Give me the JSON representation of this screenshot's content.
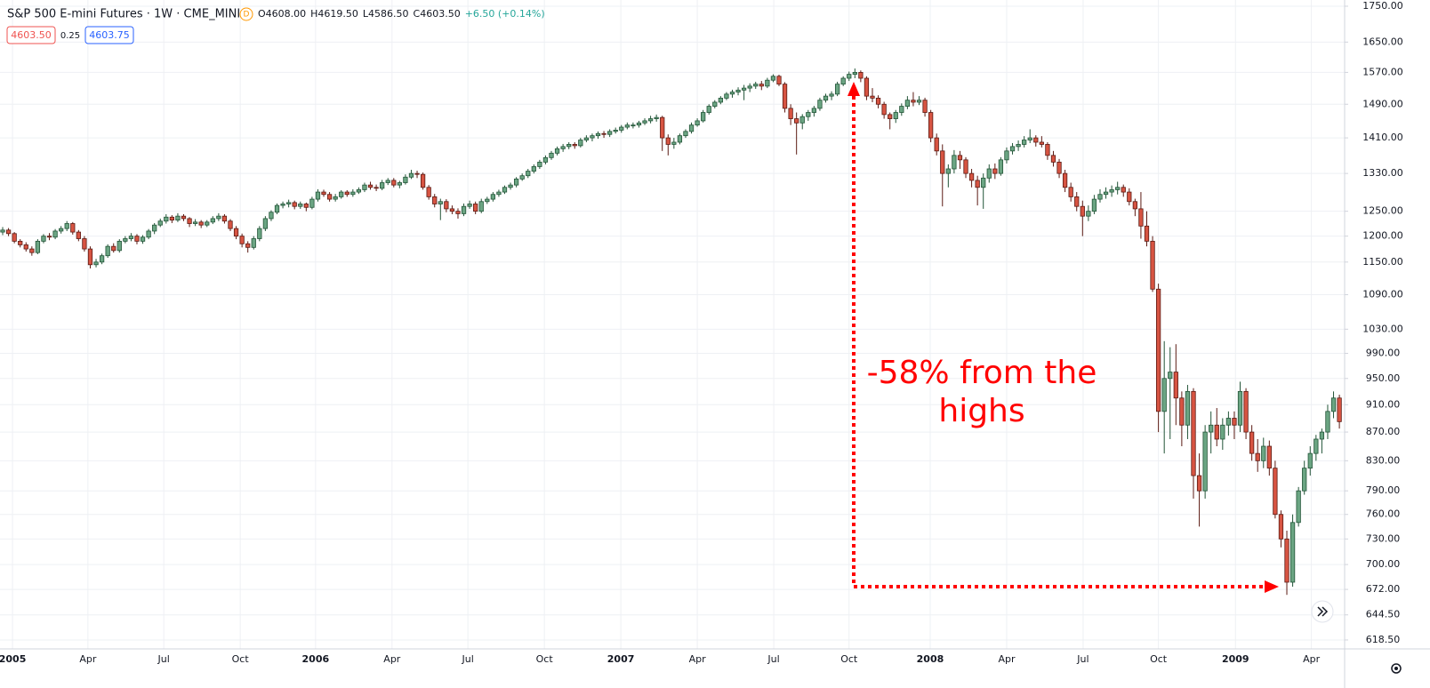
{
  "chart_data": {
    "type": "candlestick",
    "title": "S&P 500 E-mini Futures · 1W · CME_MINI",
    "source_badge": "D",
    "legend_values": [
      "O4608.00",
      "H4619.50",
      "L4586.50",
      "C4603.50",
      "+6.50 (+0.14%)"
    ],
    "price_boxes": [
      "4603.50",
      "0.25",
      "4603.75"
    ],
    "annotation": [
      "-58% from the",
      "highs"
    ],
    "log_scale": true,
    "grid": true,
    "up_color": "#6ba583",
    "down_color": "#d75442",
    "ylim": [
      609.5,
      1768
    ],
    "yticks": [
      {
        "value": 618.5,
        "label": "618.50"
      },
      {
        "value": 644.5,
        "label": "644.50"
      },
      {
        "value": 672,
        "label": "672.00"
      },
      {
        "value": 700,
        "label": "700.00"
      },
      {
        "value": 730,
        "label": "730.00"
      },
      {
        "value": 760,
        "label": "760.00"
      },
      {
        "value": 790,
        "label": "790.00"
      },
      {
        "value": 830,
        "label": "830.00"
      },
      {
        "value": 870,
        "label": "870.00"
      },
      {
        "value": 910,
        "label": "910.00"
      },
      {
        "value": 950,
        "label": "950.00"
      },
      {
        "value": 990,
        "label": "990.00"
      },
      {
        "value": 1030,
        "label": "1030.00"
      },
      {
        "value": 1090,
        "label": "1090.00"
      },
      {
        "value": 1150,
        "label": "1150.00"
      },
      {
        "value": 1200,
        "label": "1200.00"
      },
      {
        "value": 1250,
        "label": "1250.00"
      },
      {
        "value": 1330,
        "label": "1330.00"
      },
      {
        "value": 1410,
        "label": "1410.00"
      },
      {
        "value": 1490,
        "label": "1490.00"
      },
      {
        "value": 1570,
        "label": "1570.00"
      },
      {
        "value": 1650,
        "label": "1650.00"
      },
      {
        "value": 1750,
        "label": "1750.00"
      }
    ],
    "xlim": [
      -0.46,
      229.9
    ],
    "xticks": [
      {
        "value": 1.68,
        "label": "2005"
      },
      {
        "value": 14.6,
        "label": "Apr"
      },
      {
        "value": 27.6,
        "label": "Jul"
      },
      {
        "value": 40.7,
        "label": "Oct"
      },
      {
        "value": 53.6,
        "label": "2006"
      },
      {
        "value": 66.7,
        "label": "Apr"
      },
      {
        "value": 79.7,
        "label": "Jul"
      },
      {
        "value": 92.8,
        "label": "Oct"
      },
      {
        "value": 105.9,
        "label": "2007"
      },
      {
        "value": 119.0,
        "label": "Apr"
      },
      {
        "value": 132.1,
        "label": "Jul"
      },
      {
        "value": 145.0,
        "label": "Oct"
      },
      {
        "value": 158.9,
        "label": "2008"
      },
      {
        "value": 172.0,
        "label": "Apr"
      },
      {
        "value": 185.1,
        "label": "Jul"
      },
      {
        "value": 198.0,
        "label": "Oct"
      },
      {
        "value": 211.2,
        "label": "2009"
      },
      {
        "value": 224.2,
        "label": "Apr"
      }
    ],
    "ohlc": [
      [
        1208,
        1218,
        1202,
        1212
      ],
      [
        1212,
        1216,
        1200,
        1205
      ],
      [
        1205,
        1208,
        1186,
        1190
      ],
      [
        1190,
        1194,
        1178,
        1183
      ],
      [
        1183,
        1188,
        1170,
        1175
      ],
      [
        1175,
        1180,
        1162,
        1168
      ],
      [
        1168,
        1194,
        1165,
        1190
      ],
      [
        1190,
        1204,
        1186,
        1200
      ],
      [
        1200,
        1206,
        1192,
        1198
      ],
      [
        1198,
        1214,
        1194,
        1210
      ],
      [
        1210,
        1220,
        1205,
        1215
      ],
      [
        1215,
        1230,
        1210,
        1225
      ],
      [
        1225,
        1228,
        1203,
        1208
      ],
      [
        1208,
        1212,
        1190,
        1195
      ],
      [
        1195,
        1200,
        1170,
        1175
      ],
      [
        1175,
        1180,
        1138,
        1145
      ],
      [
        1145,
        1156,
        1140,
        1150
      ],
      [
        1150,
        1166,
        1146,
        1162
      ],
      [
        1162,
        1184,
        1158,
        1180
      ],
      [
        1180,
        1186,
        1168,
        1172
      ],
      [
        1172,
        1194,
        1168,
        1190
      ],
      [
        1190,
        1200,
        1186,
        1195
      ],
      [
        1195,
        1206,
        1190,
        1200
      ],
      [
        1200,
        1204,
        1184,
        1190
      ],
      [
        1190,
        1202,
        1185,
        1198
      ],
      [
        1198,
        1214,
        1194,
        1210
      ],
      [
        1210,
        1226,
        1204,
        1222
      ],
      [
        1222,
        1235,
        1218,
        1230
      ],
      [
        1230,
        1244,
        1225,
        1238
      ],
      [
        1238,
        1242,
        1226,
        1232
      ],
      [
        1232,
        1246,
        1228,
        1240
      ],
      [
        1240,
        1244,
        1230,
        1235
      ],
      [
        1235,
        1238,
        1218,
        1225
      ],
      [
        1225,
        1234,
        1220,
        1228
      ],
      [
        1228,
        1232,
        1216,
        1222
      ],
      [
        1222,
        1232,
        1218,
        1228
      ],
      [
        1228,
        1240,
        1224,
        1235
      ],
      [
        1235,
        1246,
        1230,
        1240
      ],
      [
        1240,
        1244,
        1225,
        1230
      ],
      [
        1230,
        1234,
        1210,
        1215
      ],
      [
        1215,
        1220,
        1194,
        1200
      ],
      [
        1200,
        1205,
        1178,
        1185
      ],
      [
        1185,
        1190,
        1168,
        1178
      ],
      [
        1178,
        1200,
        1174,
        1195
      ],
      [
        1195,
        1220,
        1190,
        1215
      ],
      [
        1215,
        1240,
        1210,
        1235
      ],
      [
        1235,
        1252,
        1230,
        1248
      ],
      [
        1248,
        1266,
        1244,
        1262
      ],
      [
        1262,
        1270,
        1256,
        1265
      ],
      [
        1265,
        1274,
        1258,
        1268
      ],
      [
        1268,
        1272,
        1254,
        1260
      ],
      [
        1260,
        1270,
        1255,
        1265
      ],
      [
        1265,
        1268,
        1250,
        1258
      ],
      [
        1258,
        1280,
        1254,
        1275
      ],
      [
        1275,
        1296,
        1270,
        1290
      ],
      [
        1290,
        1295,
        1280,
        1285
      ],
      [
        1285,
        1290,
        1270,
        1275
      ],
      [
        1275,
        1286,
        1270,
        1280
      ],
      [
        1280,
        1294,
        1276,
        1290
      ],
      [
        1290,
        1294,
        1280,
        1285
      ],
      [
        1285,
        1296,
        1280,
        1290
      ],
      [
        1290,
        1300,
        1286,
        1295
      ],
      [
        1295,
        1310,
        1290,
        1305
      ],
      [
        1305,
        1312,
        1295,
        1300
      ],
      [
        1300,
        1306,
        1292,
        1298
      ],
      [
        1298,
        1316,
        1294,
        1310
      ],
      [
        1310,
        1320,
        1305,
        1315
      ],
      [
        1315,
        1320,
        1300,
        1305
      ],
      [
        1305,
        1314,
        1298,
        1310
      ],
      [
        1310,
        1328,
        1306,
        1322
      ],
      [
        1322,
        1338,
        1318,
        1330
      ],
      [
        1330,
        1336,
        1320,
        1328
      ],
      [
        1328,
        1332,
        1295,
        1300
      ],
      [
        1300,
        1305,
        1274,
        1280
      ],
      [
        1280,
        1286,
        1258,
        1265
      ],
      [
        1265,
        1276,
        1232,
        1270
      ],
      [
        1270,
        1275,
        1248,
        1255
      ],
      [
        1255,
        1262,
        1244,
        1250
      ],
      [
        1250,
        1256,
        1235,
        1245
      ],
      [
        1245,
        1266,
        1240,
        1260
      ],
      [
        1260,
        1272,
        1255,
        1265
      ],
      [
        1265,
        1270,
        1244,
        1250
      ],
      [
        1250,
        1276,
        1246,
        1270
      ],
      [
        1270,
        1280,
        1265,
        1275
      ],
      [
        1275,
        1290,
        1270,
        1285
      ],
      [
        1285,
        1295,
        1280,
        1290
      ],
      [
        1290,
        1304,
        1286,
        1300
      ],
      [
        1300,
        1310,
        1295,
        1305
      ],
      [
        1305,
        1322,
        1300,
        1318
      ],
      [
        1318,
        1330,
        1314,
        1325
      ],
      [
        1325,
        1340,
        1320,
        1335
      ],
      [
        1335,
        1350,
        1330,
        1345
      ],
      [
        1345,
        1360,
        1340,
        1355
      ],
      [
        1355,
        1370,
        1350,
        1365
      ],
      [
        1365,
        1380,
        1360,
        1375
      ],
      [
        1375,
        1390,
        1370,
        1385
      ],
      [
        1385,
        1396,
        1378,
        1390
      ],
      [
        1390,
        1400,
        1384,
        1395
      ],
      [
        1395,
        1400,
        1385,
        1392
      ],
      [
        1392,
        1410,
        1388,
        1405
      ],
      [
        1405,
        1416,
        1400,
        1410
      ],
      [
        1410,
        1420,
        1402,
        1415
      ],
      [
        1415,
        1425,
        1408,
        1420
      ],
      [
        1420,
        1426,
        1410,
        1418
      ],
      [
        1418,
        1430,
        1412,
        1425
      ],
      [
        1425,
        1434,
        1420,
        1428
      ],
      [
        1428,
        1440,
        1422,
        1435
      ],
      [
        1435,
        1446,
        1430,
        1440
      ],
      [
        1440,
        1446,
        1432,
        1440
      ],
      [
        1440,
        1450,
        1434,
        1445
      ],
      [
        1445,
        1456,
        1440,
        1450
      ],
      [
        1450,
        1462,
        1444,
        1455
      ],
      [
        1455,
        1465,
        1448,
        1458
      ],
      [
        1458,
        1462,
        1380,
        1410
      ],
      [
        1410,
        1418,
        1370,
        1395
      ],
      [
        1395,
        1410,
        1385,
        1400
      ],
      [
        1400,
        1420,
        1395,
        1415
      ],
      [
        1415,
        1430,
        1410,
        1425
      ],
      [
        1425,
        1446,
        1420,
        1440
      ],
      [
        1440,
        1456,
        1436,
        1450
      ],
      [
        1450,
        1476,
        1446,
        1470
      ],
      [
        1470,
        1490,
        1465,
        1485
      ],
      [
        1485,
        1500,
        1480,
        1495
      ],
      [
        1495,
        1510,
        1490,
        1505
      ],
      [
        1505,
        1520,
        1500,
        1515
      ],
      [
        1515,
        1526,
        1506,
        1520
      ],
      [
        1520,
        1532,
        1512,
        1525
      ],
      [
        1525,
        1538,
        1500,
        1530
      ],
      [
        1530,
        1542,
        1520,
        1535
      ],
      [
        1535,
        1546,
        1528,
        1540
      ],
      [
        1540,
        1548,
        1525,
        1535
      ],
      [
        1535,
        1556,
        1530,
        1550
      ],
      [
        1550,
        1565,
        1545,
        1560
      ],
      [
        1560,
        1564,
        1535,
        1540
      ],
      [
        1540,
        1545,
        1470,
        1480
      ],
      [
        1480,
        1490,
        1440,
        1455
      ],
      [
        1455,
        1470,
        1372,
        1445
      ],
      [
        1445,
        1466,
        1430,
        1460
      ],
      [
        1460,
        1476,
        1450,
        1470
      ],
      [
        1470,
        1486,
        1460,
        1480
      ],
      [
        1480,
        1506,
        1474,
        1500
      ],
      [
        1500,
        1516,
        1494,
        1510
      ],
      [
        1510,
        1522,
        1500,
        1515
      ],
      [
        1515,
        1546,
        1510,
        1540
      ],
      [
        1540,
        1560,
        1535,
        1555
      ],
      [
        1555,
        1572,
        1548,
        1565
      ],
      [
        1565,
        1580,
        1555,
        1570
      ],
      [
        1570,
        1575,
        1545,
        1555
      ],
      [
        1555,
        1560,
        1500,
        1510
      ],
      [
        1510,
        1530,
        1495,
        1505
      ],
      [
        1505,
        1512,
        1480,
        1490
      ],
      [
        1490,
        1496,
        1455,
        1465
      ],
      [
        1465,
        1470,
        1430,
        1455
      ],
      [
        1455,
        1476,
        1445,
        1470
      ],
      [
        1470,
        1492,
        1462,
        1485
      ],
      [
        1485,
        1510,
        1478,
        1500
      ],
      [
        1500,
        1520,
        1485,
        1495
      ],
      [
        1495,
        1510,
        1488,
        1500
      ],
      [
        1500,
        1506,
        1460,
        1470
      ],
      [
        1470,
        1476,
        1400,
        1410
      ],
      [
        1410,
        1420,
        1370,
        1380
      ],
      [
        1380,
        1395,
        1260,
        1330
      ],
      [
        1330,
        1350,
        1300,
        1340
      ],
      [
        1340,
        1382,
        1330,
        1370
      ],
      [
        1370,
        1380,
        1340,
        1360
      ],
      [
        1360,
        1366,
        1320,
        1330
      ],
      [
        1330,
        1340,
        1300,
        1315
      ],
      [
        1315,
        1325,
        1262,
        1300
      ],
      [
        1300,
        1330,
        1255,
        1320
      ],
      [
        1320,
        1350,
        1310,
        1340
      ],
      [
        1340,
        1352,
        1318,
        1330
      ],
      [
        1330,
        1366,
        1325,
        1360
      ],
      [
        1360,
        1388,
        1352,
        1380
      ],
      [
        1380,
        1398,
        1372,
        1390
      ],
      [
        1390,
        1404,
        1380,
        1395
      ],
      [
        1395,
        1414,
        1388,
        1405
      ],
      [
        1405,
        1430,
        1398,
        1410
      ],
      [
        1410,
        1416,
        1390,
        1400
      ],
      [
        1400,
        1414,
        1388,
        1395
      ],
      [
        1395,
        1400,
        1360,
        1370
      ],
      [
        1370,
        1380,
        1345,
        1355
      ],
      [
        1355,
        1362,
        1320,
        1330
      ],
      [
        1330,
        1338,
        1290,
        1300
      ],
      [
        1300,
        1310,
        1270,
        1280
      ],
      [
        1280,
        1290,
        1250,
        1260
      ],
      [
        1260,
        1272,
        1200,
        1240
      ],
      [
        1240,
        1262,
        1230,
        1250
      ],
      [
        1250,
        1284,
        1244,
        1275
      ],
      [
        1275,
        1296,
        1268,
        1285
      ],
      [
        1285,
        1300,
        1276,
        1290
      ],
      [
        1290,
        1304,
        1280,
        1295
      ],
      [
        1295,
        1312,
        1285,
        1300
      ],
      [
        1300,
        1306,
        1280,
        1290
      ],
      [
        1290,
        1298,
        1262,
        1270
      ],
      [
        1270,
        1276,
        1240,
        1255
      ],
      [
        1255,
        1290,
        1195,
        1220
      ],
      [
        1220,
        1250,
        1180,
        1190
      ],
      [
        1190,
        1200,
        1095,
        1100
      ],
      [
        1100,
        1110,
        870,
        900
      ],
      [
        900,
        1010,
        840,
        950
      ],
      [
        950,
        1000,
        860,
        960
      ],
      [
        960,
        1005,
        880,
        920
      ],
      [
        920,
        930,
        850,
        880
      ],
      [
        880,
        940,
        860,
        930
      ],
      [
        930,
        935,
        780,
        810
      ],
      [
        810,
        840,
        745,
        790
      ],
      [
        790,
        880,
        780,
        870
      ],
      [
        870,
        900,
        840,
        880
      ],
      [
        880,
        905,
        850,
        860
      ],
      [
        860,
        890,
        845,
        880
      ],
      [
        880,
        900,
        865,
        890
      ],
      [
        890,
        900,
        860,
        880
      ],
      [
        880,
        945,
        870,
        930
      ],
      [
        930,
        935,
        860,
        870
      ],
      [
        870,
        880,
        830,
        840
      ],
      [
        840,
        860,
        815,
        830
      ],
      [
        830,
        862,
        820,
        850
      ],
      [
        850,
        858,
        810,
        820
      ],
      [
        820,
        830,
        755,
        760
      ],
      [
        760,
        765,
        720,
        730
      ],
      [
        730,
        740,
        666,
        680
      ],
      [
        680,
        760,
        675,
        750
      ],
      [
        750,
        795,
        745,
        790
      ],
      [
        790,
        830,
        785,
        820
      ],
      [
        820,
        850,
        810,
        840
      ],
      [
        840,
        866,
        830,
        860
      ],
      [
        860,
        875,
        840,
        870
      ],
      [
        870,
        910,
        860,
        900
      ],
      [
        900,
        930,
        890,
        920
      ],
      [
        920,
        925,
        875,
        885
      ]
    ]
  }
}
